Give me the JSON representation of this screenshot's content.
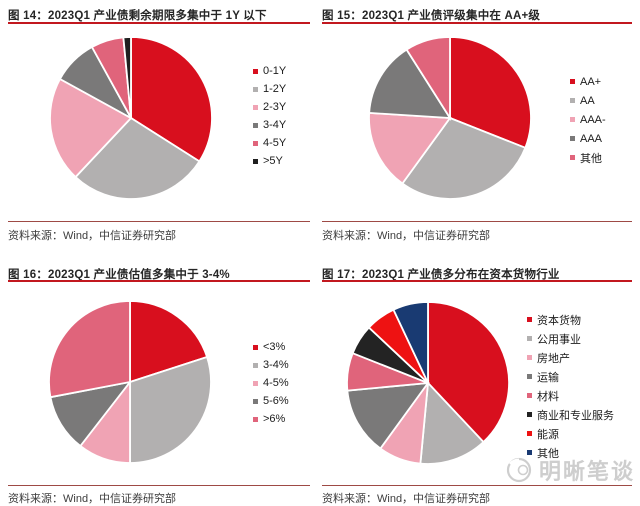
{
  "brand": {
    "title_rule_color": "#c2181f",
    "source_rule_color": "#9e4a45",
    "watermark_color": "#cccccc"
  },
  "watermark": {
    "text": "明晰笔谈"
  },
  "charts": [
    {
      "source": "资料来源：Wind，中信证券研究部",
      "chart_data": {
        "type": "pie",
        "title": "图 14：2023Q1 产业债剩余期限多集中于 1Y 以下",
        "categories": [
          "0-1Y",
          "1-2Y",
          "2-3Y",
          "3-4Y",
          "4-5Y",
          ">5Y"
        ],
        "values": [
          34,
          28,
          21,
          9,
          6.5,
          1.5
        ],
        "colors": [
          "#d80f1e",
          "#b2b0b0",
          "#f0a3b4",
          "#7a7979",
          "#e0647b",
          "#1f1f1f"
        ],
        "start_angle": 0,
        "direction": "clockwise",
        "legend_position": "right",
        "units": "%"
      }
    },
    {
      "source": "资料来源：Wind，中信证券研究部",
      "chart_data": {
        "type": "pie",
        "title": "图 15：2023Q1 产业债评级集中在 AA+级",
        "categories": [
          "AA+",
          "AA",
          "AAA-",
          "AAA",
          "其他"
        ],
        "values": [
          31,
          29,
          16,
          15,
          9
        ],
        "colors": [
          "#d80f1e",
          "#b2b0b0",
          "#f0a3b4",
          "#7a7979",
          "#e0647b"
        ],
        "start_angle": 0,
        "direction": "clockwise",
        "legend_position": "right",
        "units": "%"
      }
    },
    {
      "source": "资料来源：Wind，中信证券研究部",
      "chart_data": {
        "type": "pie",
        "title": "图 16：2023Q1 产业债估值多集中于 3-4%",
        "categories": [
          "<3%",
          "3-4%",
          "4-5%",
          "5-6%",
          ">6%"
        ],
        "values": [
          20,
          30,
          10.5,
          11.5,
          28
        ],
        "colors": [
          "#d80f1e",
          "#b2b0b0",
          "#f0a3b4",
          "#7a7979",
          "#e0647b"
        ],
        "start_angle": 0,
        "direction": "clockwise",
        "legend_position": "right",
        "units": "%"
      }
    },
    {
      "source": "资料来源：Wind，中信证券研究部",
      "chart_data": {
        "type": "pie",
        "title": "图 17：2023Q1 产业债多分布在资本货物行业",
        "categories": [
          "资本货物",
          "公用事业",
          "房地产",
          "运输",
          "材料",
          "商业和专业服务",
          "能源",
          "其他"
        ],
        "values": [
          38,
          13.5,
          8.5,
          13.5,
          7.5,
          6,
          6,
          7
        ],
        "colors": [
          "#d80f1e",
          "#b2b0b0",
          "#f0a3b4",
          "#7a7979",
          "#e0647b",
          "#232323",
          "#ee1212",
          "#193a72"
        ],
        "start_angle": 0,
        "direction": "clockwise",
        "legend_position": "right",
        "units": "%"
      }
    }
  ]
}
